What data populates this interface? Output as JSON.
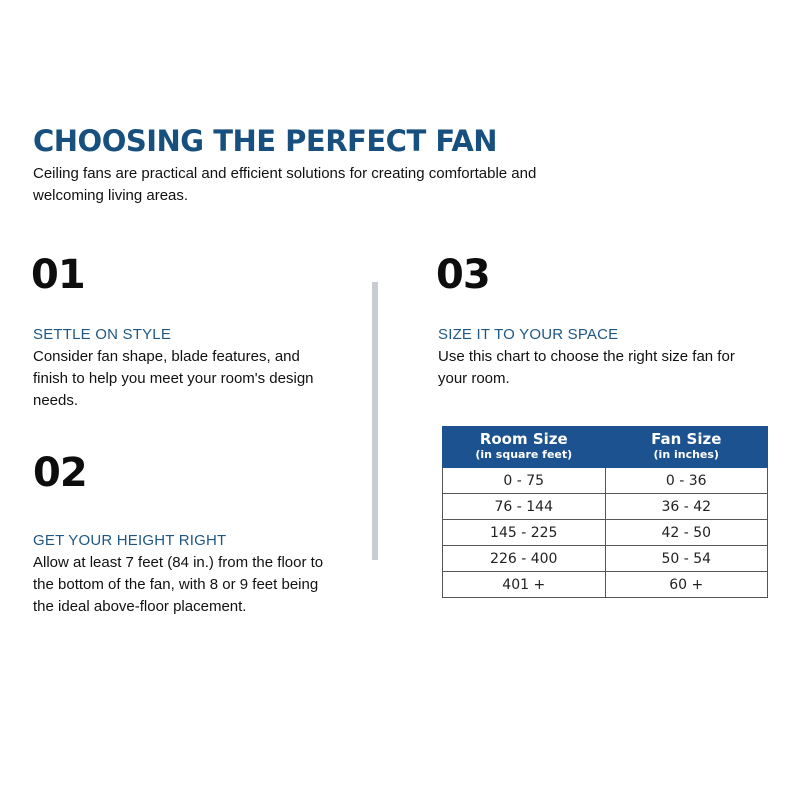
{
  "title": "CHOOSING THE PERFECT FAN",
  "intro": "Ceiling fans are practical and efficient solutions for creating comfortable and welcoming living areas.",
  "sections": [
    {
      "number": "01",
      "heading": "SETTLE ON STYLE",
      "body": "Consider fan shape, blade features, and finish to help you meet your room's design needs."
    },
    {
      "number": "02",
      "heading": "GET YOUR HEIGHT RIGHT",
      "body": "Allow at least 7 feet (84 in.) from the floor to the bottom of the fan, with 8 or 9 feet being the ideal above-floor placement."
    },
    {
      "number": "03",
      "heading": "SIZE IT TO YOUR SPACE",
      "body": "Use this chart to choose the right size fan for your room."
    }
  ],
  "size_table": {
    "columns": [
      {
        "label": "Room Size",
        "sublabel": "(in square feet)"
      },
      {
        "label": "Fan Size",
        "sublabel": "(in inches)"
      }
    ],
    "rows": [
      [
        "0 - 75",
        "0 - 36"
      ],
      [
        "76 - 144",
        "36 - 42"
      ],
      [
        "145 - 225",
        "42 - 50"
      ],
      [
        "226 - 400",
        "50 - 54"
      ],
      [
        "401 +",
        "60 +"
      ]
    ]
  },
  "colors": {
    "title": "#17507f",
    "heading": "#1f5784",
    "table_header": "#1d5290",
    "divider": "#c9cdd1"
  }
}
